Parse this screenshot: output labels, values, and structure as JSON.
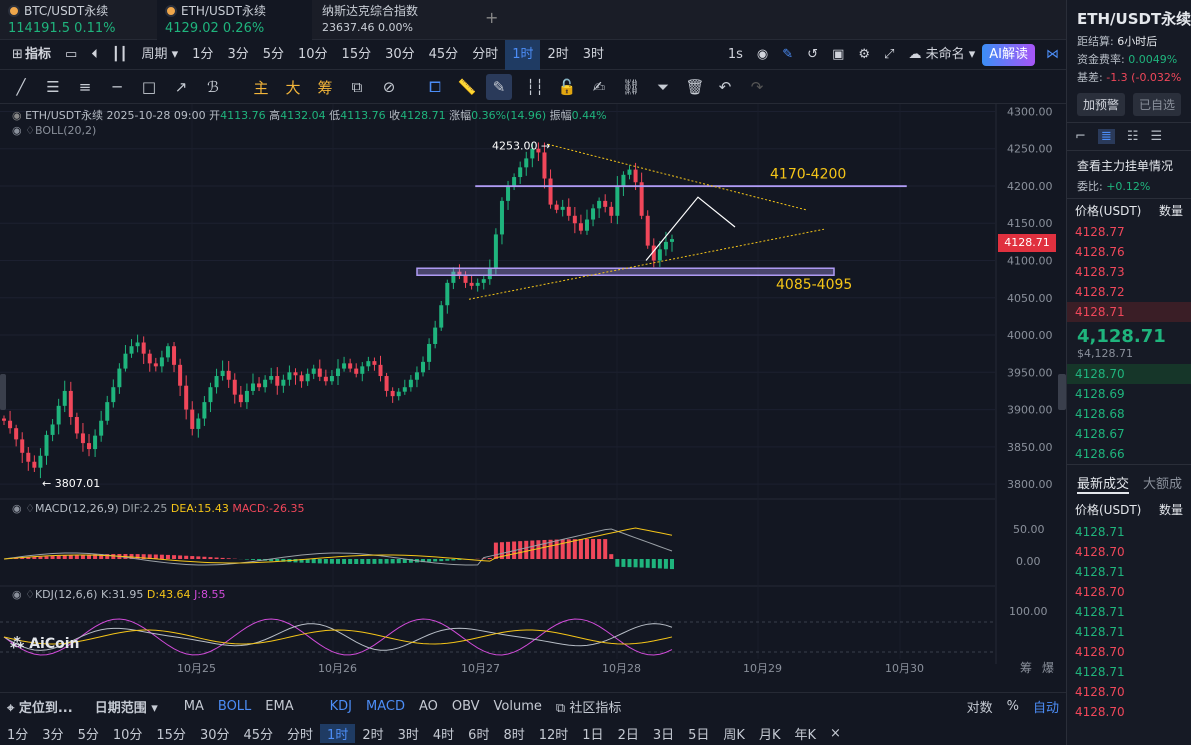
{
  "tabs": [
    {
      "name": "BTC/USDT永续",
      "price": "114191.5",
      "change": "0.11%",
      "color": "#1fb47d"
    },
    {
      "name": "ETH/USDT永续",
      "price": "4129.02",
      "change": "0.26%",
      "color": "#1fb47d"
    },
    {
      "name": "纳斯达克综合指数",
      "price": "23637.46",
      "change": "0.00%",
      "color": "#c9ced6"
    }
  ],
  "add_tab": "+",
  "toolbar": {
    "indicators": "指标",
    "period": "周期",
    "intervals": [
      "1分",
      "3分",
      "5分",
      "10分",
      "15分",
      "30分",
      "45分",
      "分时",
      "1时",
      "2时",
      "3时"
    ],
    "active_interval": "1时",
    "interval_1s": "1s",
    "unnamed": "未命名",
    "ai": "AI解读"
  },
  "drawtools": {
    "main": "主",
    "big": "大",
    "chip": "筹"
  },
  "ohlc_bar": {
    "symbol": "ETH/USDT永续",
    "datetime": "2025-10-28 09:00",
    "open_label": "开",
    "open": "4113.76",
    "high_label": "高",
    "high": "4132.04",
    "low_label": "低",
    "low": "4113.76",
    "close_label": "收",
    "close": "4128.71",
    "change_label": "涨幅",
    "change": "0.36%(14.96)",
    "amp_label": "振幅",
    "amp": "0.44%"
  },
  "boll_label": "BOLL(20,2)",
  "macd": {
    "label": "MACD(12,26,9)",
    "dif": "DIF:2.25",
    "dea": "DEA:15.43",
    "macd": "MACD:-26.35"
  },
  "kdj": {
    "label": "KDJ(12,6,6)",
    "k": "K:31.95",
    "d": "D:43.64",
    "j": "J:8.55"
  },
  "annotations": {
    "high_marker": "4253.00",
    "low_marker": "3807.01",
    "upper_zone": "4170-4200",
    "lower_zone": "4085-4095",
    "current_price": "4128.71"
  },
  "logo": "AiCoin",
  "price_axis": [
    "4300.00",
    "4250.00",
    "4200.00",
    "4150.00",
    "4100.00",
    "4050.00",
    "4000.00",
    "3950.00",
    "3900.00",
    "3850.00",
    "3800.00"
  ],
  "macd_axis": [
    "50.00",
    "0.00"
  ],
  "kdj_axis": [
    "100.00"
  ],
  "date_axis": [
    "10月25",
    "10月26",
    "10月27",
    "10月28",
    "10月29",
    "10月30"
  ],
  "axis_right_labels": {
    "chip": "筹",
    "explode": "爆"
  },
  "bottom_bar": {
    "locate": "定位到...",
    "date_range": "日期范围",
    "main_indicators": [
      "MA",
      "BOLL",
      "EMA"
    ],
    "active_main": "BOLL",
    "sub_indicators": [
      "KDJ",
      "MACD",
      "AO",
      "OBV",
      "Volume"
    ],
    "community": "社区指标",
    "log": "对数",
    "pct": "%",
    "auto": "自动"
  },
  "period_bar": [
    "1分",
    "3分",
    "5分",
    "10分",
    "15分",
    "30分",
    "45分",
    "分时",
    "1时",
    "2时",
    "3时",
    "4时",
    "6时",
    "8时",
    "12时",
    "1日",
    "2日",
    "3日",
    "5日",
    "周K",
    "月K",
    "年K"
  ],
  "active_period": "1时",
  "close_x": "×",
  "right_panel": {
    "title": "ETH/USDT永续",
    "settle_label": "距结算:",
    "settle_value": "6小时后",
    "funding_label": "资金费率:",
    "funding_value": "0.0049%",
    "basis_label": "基差:",
    "basis_value": "-1.3 (-0.032%",
    "alert_btn": "加预警",
    "watch_btn": "已自选",
    "orderbook_title": "查看主力挂单情况",
    "ratio_label": "委比:",
    "ratio_value": "+0.12%",
    "col_price": "价格(USDT)",
    "col_qty": "数量",
    "asks": [
      "4128.77",
      "4128.76",
      "4128.73",
      "4128.72",
      "4128.71"
    ],
    "last_price": "4,128.71",
    "last_price_usd": "$4,128.71",
    "bids": [
      "4128.70",
      "4128.69",
      "4128.68",
      "4128.67",
      "4128.66"
    ],
    "trades_title": "最新成交",
    "trades_tab2": "大额成",
    "trades": [
      {
        "p": "4128.71",
        "c": "green"
      },
      {
        "p": "4128.70",
        "c": "red"
      },
      {
        "p": "4128.71",
        "c": "green"
      },
      {
        "p": "4128.70",
        "c": "red"
      },
      {
        "p": "4128.71",
        "c": "green"
      },
      {
        "p": "4128.71",
        "c": "green"
      },
      {
        "p": "4128.70",
        "c": "red"
      },
      {
        "p": "4128.71",
        "c": "green"
      },
      {
        "p": "4128.70",
        "c": "red"
      },
      {
        "p": "4128.70",
        "c": "red"
      }
    ]
  },
  "colors": {
    "up": "#1fb47d",
    "down": "#f0475a",
    "accent": "#4c8df6",
    "zone": "#b09cf5",
    "label": "#f5c518"
  },
  "chart_data": {
    "type": "candlestick",
    "timeframe": "1h",
    "ylim": [
      3780,
      4310
    ],
    "close_series": [
      3885,
      3875,
      3860,
      3842,
      3830,
      3822,
      3838,
      3866,
      3880,
      3905,
      3925,
      3890,
      3868,
      3855,
      3847,
      3865,
      3885,
      3910,
      3930,
      3955,
      3975,
      3985,
      3990,
      3975,
      3962,
      3958,
      3970,
      3985,
      3960,
      3932,
      3900,
      3874,
      3888,
      3910,
      3930,
      3945,
      3952,
      3940,
      3920,
      3910,
      3925,
      3935,
      3930,
      3940,
      3945,
      3932,
      3940,
      3950,
      3946,
      3938,
      3948,
      3955,
      3944,
      3938,
      3945,
      3955,
      3962,
      3955,
      3948,
      3958,
      3965,
      3960,
      3945,
      3925,
      3918,
      3924,
      3930,
      3940,
      3950,
      3964,
      3988,
      4010,
      4040,
      4070,
      4085,
      4080,
      4070,
      4066,
      4070,
      4075,
      4090,
      4135,
      4180,
      4200,
      4212,
      4225,
      4237,
      4250,
      4245,
      4210,
      4175,
      4168,
      4172,
      4160,
      4150,
      4140,
      4155,
      4170,
      4180,
      4172,
      4160,
      4200,
      4215,
      4222,
      4205,
      4160,
      4120,
      4100,
      4115,
      4125,
      4128.71
    ],
    "marks": {
      "high": 4253.0,
      "low": 3807.01
    },
    "zones": [
      [
        4170,
        4200
      ],
      [
        4085,
        4095
      ]
    ],
    "macd": {
      "dif": 2.25,
      "dea": 15.43,
      "macd": -26.35
    },
    "kdj": {
      "k": 31.95,
      "d": 43.64,
      "j": 8.55
    }
  }
}
